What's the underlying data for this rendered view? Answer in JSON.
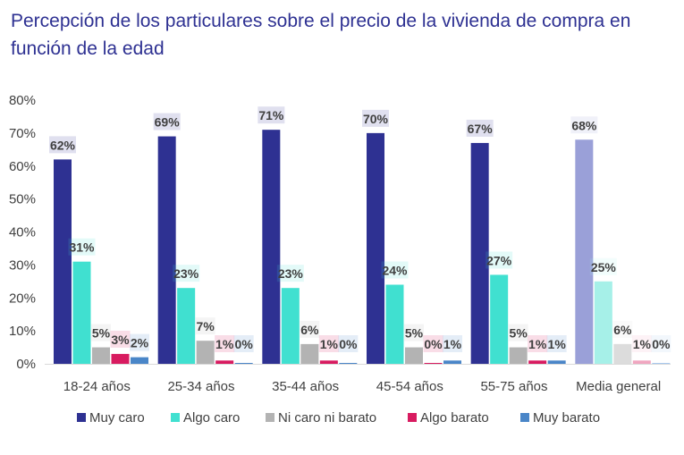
{
  "title": "Percepción de los particulares sobre el precio de la vivienda de compra en función de la edad",
  "chart_data": {
    "type": "bar",
    "title": "Percepción de los particulares sobre el precio de la vivienda de compra en función de la edad",
    "xlabel": "",
    "ylabel": "",
    "ylim": [
      0,
      80
    ],
    "yticks": [
      "0%",
      "10%",
      "20%",
      "30%",
      "40%",
      "50%",
      "60%",
      "70%",
      "80%"
    ],
    "grid": false,
    "legend_position": "bottom",
    "categories": [
      "18-24 años",
      "25-34 años",
      "35-44 años",
      "45-54 años",
      "55-75 años",
      "Media general"
    ],
    "series": [
      {
        "name": "Muy caro",
        "color": "#2e3192",
        "values": [
          62,
          69,
          71,
          70,
          67,
          68
        ],
        "labels": [
          "62%",
          "69%",
          "71%",
          "70%",
          "67%",
          "68%"
        ]
      },
      {
        "name": "Algo caro",
        "color": "#40e0d0",
        "values": [
          31,
          23,
          23,
          24,
          27,
          25
        ],
        "labels": [
          "31%",
          "23%",
          "23%",
          "24%",
          "27%",
          "25%"
        ]
      },
      {
        "name": "Ni caro ni barato",
        "color": "#b3b3b3",
        "values": [
          5,
          7,
          6,
          5,
          5,
          6
        ],
        "labels": [
          "5%",
          "7%",
          "6%",
          "5%",
          "5%",
          "6%"
        ]
      },
      {
        "name": "Algo barato",
        "color": "#d81b60",
        "values": [
          3,
          1,
          1,
          0,
          1,
          1
        ],
        "labels": [
          "3%",
          "1%",
          "1%",
          "0%",
          "1%",
          "1%"
        ]
      },
      {
        "name": "Muy barato",
        "color": "#4a86c8",
        "values": [
          2,
          0,
          0,
          1,
          1,
          0
        ],
        "labels": [
          "2%",
          "0%",
          "0%",
          "1%",
          "1%",
          "0%"
        ]
      }
    ],
    "highlight_category": "Media general",
    "highlight_colors": [
      "#9aa0d8",
      "#a6f0e8",
      "#dcdcdc",
      "#f0a6c0",
      "#a8c8ee"
    ]
  }
}
